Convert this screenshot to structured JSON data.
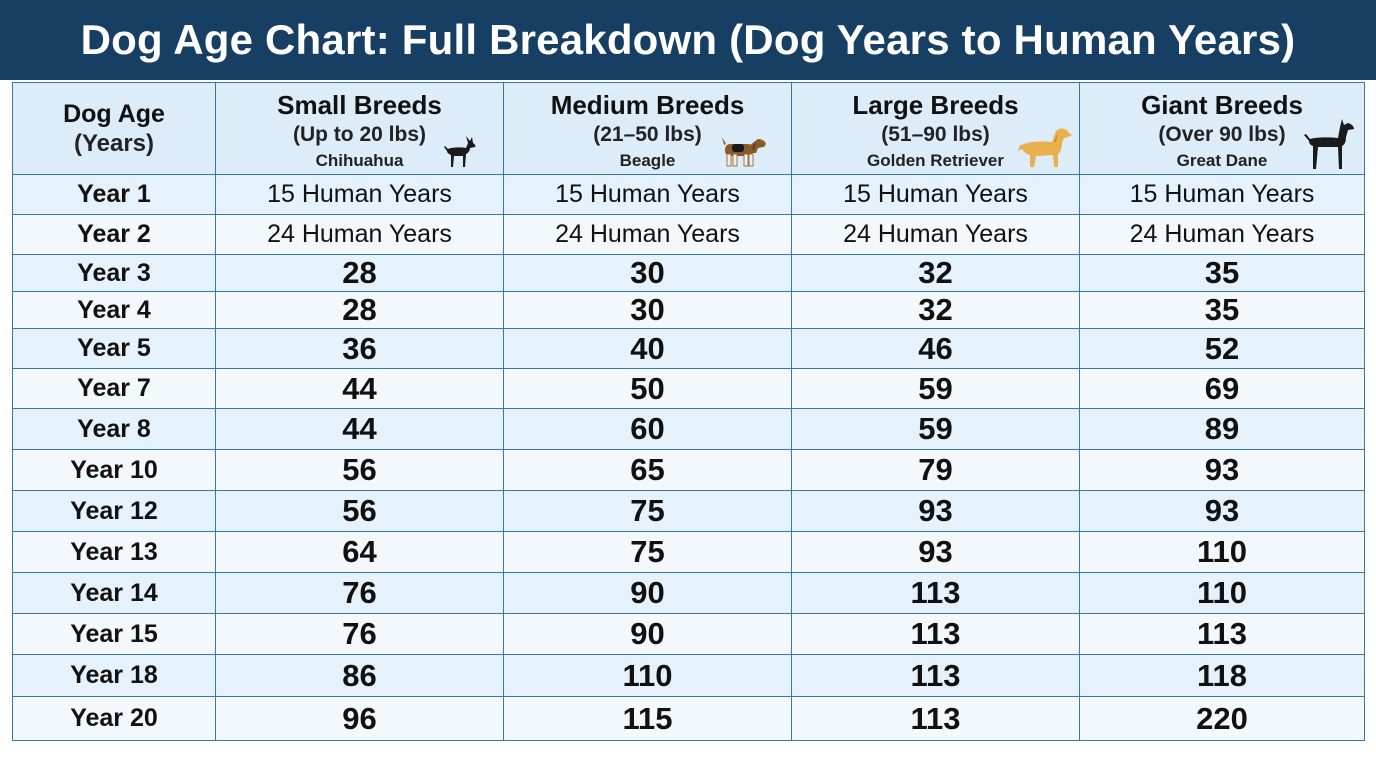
{
  "title": "Dog Age Chart: Full Breakdown (Dog Years to Human Years)",
  "header": {
    "first_col_main": "Dog Age",
    "first_col_sub": "(Years)",
    "breeds": [
      {
        "name": "Small Breeds",
        "weight": "(Up to 20 lbs)",
        "example": "Chihuahua",
        "icon": "chihuahua-icon",
        "icon_color": "#1a1a1a"
      },
      {
        "name": "Medium Breeds",
        "weight": "(21–50 lbs)",
        "example": "Beagle",
        "icon": "beagle-icon",
        "icon_color": "#8a5a2b"
      },
      {
        "name": "Large Breeds",
        "weight": "(51–90 lbs)",
        "example": "Golden Retriever",
        "icon": "golden-retriever-icon",
        "icon_color": "#e9b04e"
      },
      {
        "name": "Giant Breeds",
        "weight": "(Over 90 lbs)",
        "example": "Great Dane",
        "icon": "great-dane-icon",
        "icon_color": "#1a1a1a"
      }
    ]
  },
  "colors": {
    "title_bg": "#173f63",
    "border": "#3a76a6",
    "header_bg": "#dcecf9",
    "row_alt_1": "#e5f1fb",
    "row_alt_2": "#f3f8fd"
  },
  "chart_data": {
    "type": "table",
    "title": "Dog Age Chart: Full Breakdown (Dog Years to Human Years)",
    "columns": [
      "Dog Age (Years)",
      "Small Breeds",
      "Medium Breeds",
      "Large Breeds",
      "Giant Breeds"
    ],
    "rows": [
      {
        "age": "Year 1",
        "values": [
          "15 Human Years",
          "15 Human Years",
          "15 Human Years",
          "15 Human Years"
        ]
      },
      {
        "age": "Year 2",
        "values": [
          "24 Human Years",
          "24 Human Years",
          "24 Human Years",
          "24 Human Years"
        ]
      },
      {
        "age": "Year 3",
        "values": [
          "28",
          "30",
          "32",
          "35"
        ]
      },
      {
        "age": "Year 4",
        "values": [
          "28",
          "30",
          "32",
          "35"
        ]
      },
      {
        "age": "Year 5",
        "values": [
          "36",
          "40",
          "46",
          "52"
        ]
      },
      {
        "age": "Year 7",
        "values": [
          "44",
          "50",
          "59",
          "69"
        ]
      },
      {
        "age": "Year 8",
        "values": [
          "44",
          "60",
          "59",
          "89"
        ]
      },
      {
        "age": "Year 10",
        "values": [
          "56",
          "65",
          "79",
          "93"
        ]
      },
      {
        "age": "Year 12",
        "values": [
          "56",
          "75",
          "93",
          "93"
        ]
      },
      {
        "age": "Year 13",
        "values": [
          "64",
          "75",
          "93",
          "110"
        ]
      },
      {
        "age": "Year 14",
        "values": [
          "76",
          "90",
          "113",
          "110"
        ]
      },
      {
        "age": "Year 15",
        "values": [
          "76",
          "90",
          "113",
          "113"
        ]
      },
      {
        "age": "Year 18",
        "values": [
          "86",
          "110",
          "113",
          "118"
        ]
      },
      {
        "age": "Year 20",
        "values": [
          "96",
          "115",
          "113",
          "220"
        ]
      }
    ]
  }
}
